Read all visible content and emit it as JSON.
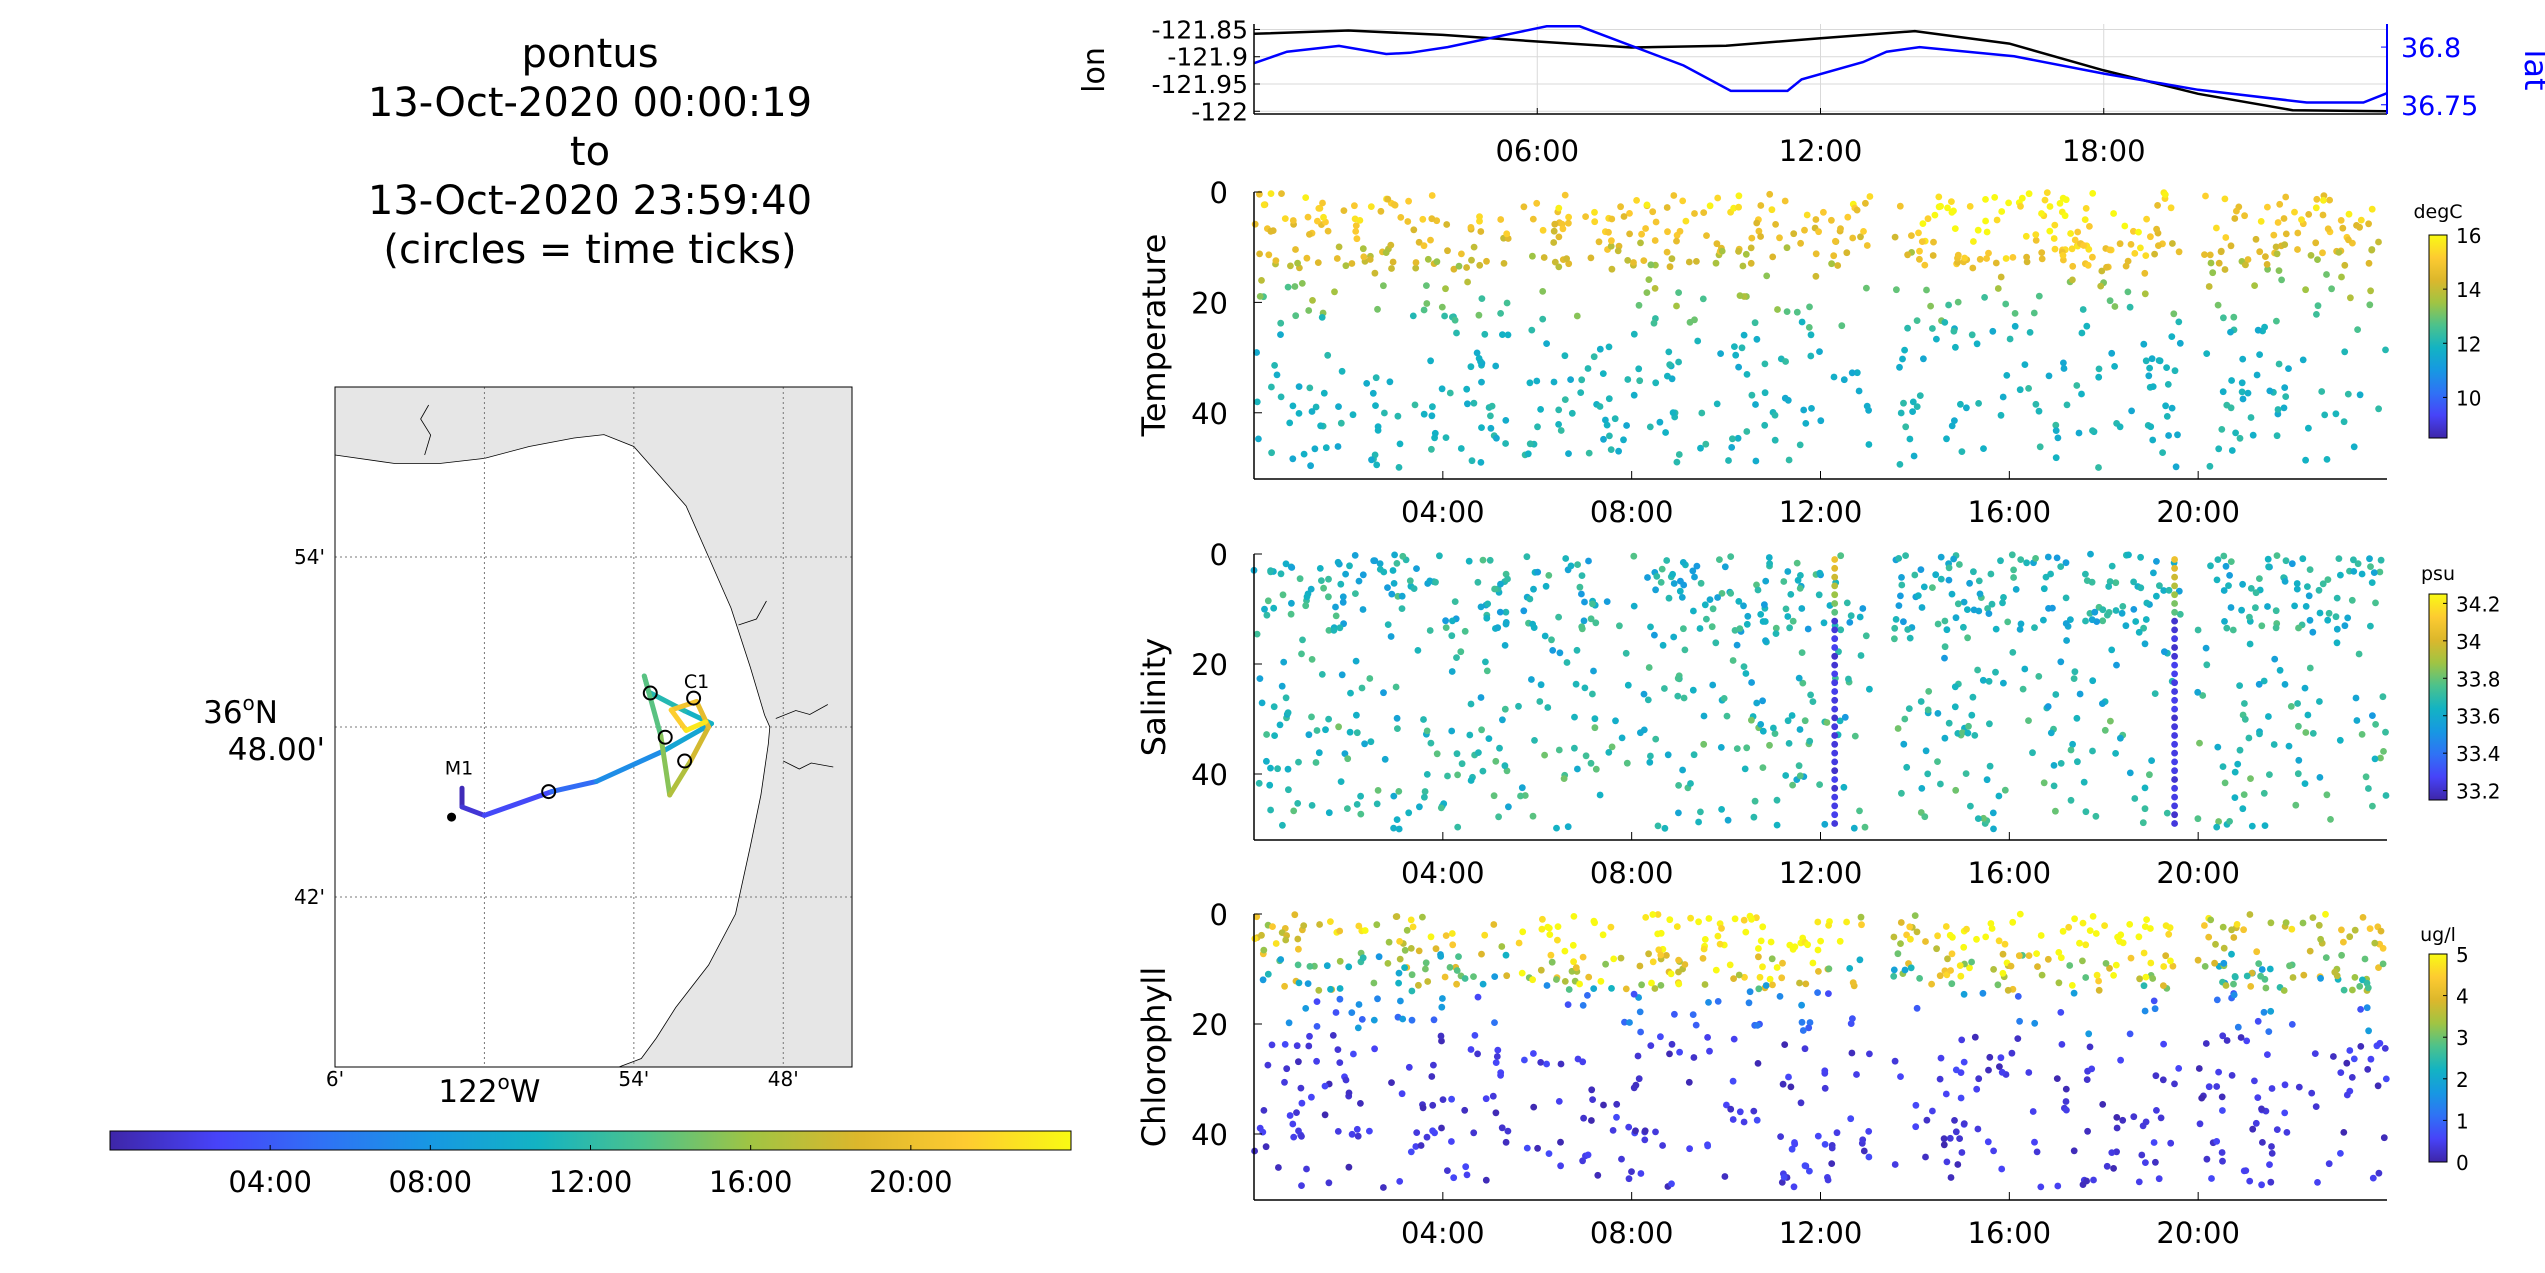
{
  "title": {
    "lines": [
      "pontus",
      "13-Oct-2020 00:00:19",
      "to",
      "13-Oct-2020 23:59:40",
      "(circles = time ticks)"
    ]
  },
  "colors": {
    "lon_line": "#000000",
    "lat_line": "#0000ff",
    "land": "#e6e6e6",
    "water": "#ffffff",
    "parula": [
      "#3e26a8",
      "#4743f8",
      "#2f72f5",
      "#1798e2",
      "#13b3c3",
      "#4cc28c",
      "#a0c443",
      "#dcb72c",
      "#fdcb31",
      "#f9fa13"
    ]
  },
  "chart_data": [
    {
      "id": "map",
      "type": "map",
      "x_ticks": [
        "6'",
        "122°W",
        "54'",
        "48'"
      ],
      "x_tick_lon": [
        -122.1,
        -122.0,
        -121.9,
        -121.8
      ],
      "y_ticks": [
        "54'",
        "36°N 48.00'",
        "42'"
      ],
      "y_tick_lat": [
        36.9,
        36.8,
        36.7
      ],
      "lon_range": [
        -122.1,
        -121.754
      ],
      "lat_range": [
        36.6,
        37.0
      ],
      "grid": true,
      "labels": [
        {
          "text": "M1",
          "lon": -122.017,
          "lat": 36.772
        },
        {
          "text": "C1",
          "lon": -121.858,
          "lat": 36.823
        }
      ],
      "mooring_point": {
        "lon": -122.022,
        "lat": 36.747
      },
      "track": [
        {
          "lon": -122.015,
          "lat": 36.764,
          "t": 0.0
        },
        {
          "lon": -122.015,
          "lat": 36.753,
          "t": 1.0
        },
        {
          "lon": -122.0,
          "lat": 36.748,
          "t": 2.0
        },
        {
          "lon": -121.955,
          "lat": 36.762,
          "t": 4.0
        },
        {
          "lon": -121.925,
          "lat": 36.768,
          "t": 6.0
        },
        {
          "lon": -121.88,
          "lat": 36.786,
          "t": 8.5
        },
        {
          "lon": -121.848,
          "lat": 36.802,
          "t": 10.0
        },
        {
          "lon": -121.866,
          "lat": 36.8095,
          "t": 11.0
        },
        {
          "lon": -121.89,
          "lat": 36.8205,
          "t": 12.0
        },
        {
          "lon": -121.893,
          "lat": 36.83,
          "t": 13.0
        },
        {
          "lon": -121.882,
          "lat": 36.795,
          "t": 14.5
        },
        {
          "lon": -121.876,
          "lat": 36.76,
          "t": 16.0
        },
        {
          "lon": -121.862,
          "lat": 36.78,
          "t": 17.5
        },
        {
          "lon": -121.85,
          "lat": 36.8,
          "t": 19.0
        },
        {
          "lon": -121.858,
          "lat": 36.815,
          "t": 20.0
        },
        {
          "lon": -121.875,
          "lat": 36.81,
          "t": 21.0
        },
        {
          "lon": -121.865,
          "lat": 36.798,
          "t": 22.0
        },
        {
          "lon": -121.852,
          "lat": 36.803,
          "t": 24.0
        }
      ],
      "time_tick_circles": [
        {
          "lon": -121.957,
          "lat": 36.762
        },
        {
          "lon": -121.866,
          "lat": 36.78
        },
        {
          "lon": -121.879,
          "lat": 36.794
        },
        {
          "lon": -121.889,
          "lat": 36.82
        },
        {
          "lon": -121.86,
          "lat": 36.817
        }
      ]
    },
    {
      "id": "time-colorbar",
      "type": "colorbar",
      "range_hours": [
        0,
        24
      ],
      "tick_labels": [
        "04:00",
        "08:00",
        "12:00",
        "16:00",
        "20:00"
      ],
      "tick_hours": [
        4,
        8,
        12,
        16,
        20
      ]
    },
    {
      "id": "lonlat",
      "type": "line",
      "x_range_hours": [
        0,
        24
      ],
      "x_tick_labels": [
        "06:00",
        "12:00",
        "18:00"
      ],
      "x_tick_hours": [
        6,
        12,
        18
      ],
      "grid": true,
      "series": [
        {
          "name": "lon",
          "axis": "left",
          "ylabel": "lon",
          "y_range": [
            -122.005,
            -121.84
          ],
          "y_tick_labels": [
            "-121.85",
            "-121.9",
            "-121.95",
            "-122"
          ],
          "y_ticks": [
            -121.85,
            -121.9,
            -121.95,
            -122.0
          ],
          "x": [
            0,
            2,
            4,
            6,
            8,
            10,
            12,
            14,
            16,
            18,
            20,
            22,
            24
          ],
          "y": [
            -121.858,
            -121.852,
            -121.86,
            -121.872,
            -121.883,
            -121.88,
            -121.866,
            -121.853,
            -121.876,
            -121.925,
            -121.968,
            -121.998,
            -122.0
          ]
        },
        {
          "name": "lat",
          "axis": "right",
          "ylabel": "lat",
          "y_range": [
            36.742,
            36.82
          ],
          "y_tick_labels": [
            "36.8",
            "36.75"
          ],
          "y_ticks": [
            36.8,
            36.75
          ],
          "x": [
            0,
            0.7,
            1.8,
            2.8,
            3.3,
            4.1,
            5.5,
            6.2,
            6.9,
            9.1,
            10.1,
            11.3,
            11.6,
            12.9,
            13.4,
            14.1,
            16.1,
            18.0,
            20.0,
            22.3,
            23.5,
            24
          ],
          "y": [
            36.786,
            36.796,
            36.801,
            36.794,
            36.795,
            36.8,
            36.812,
            36.818,
            36.818,
            36.784,
            36.762,
            36.762,
            36.772,
            36.787,
            36.796,
            36.8,
            36.792,
            36.777,
            36.763,
            36.752,
            36.752,
            36.76
          ]
        }
      ]
    },
    {
      "id": "temperature",
      "type": "scatter",
      "ylabel": "Temperature",
      "y_range": [
        0,
        52
      ],
      "y_ticks": [
        0,
        20,
        40
      ],
      "y_reversed": true,
      "x_range_hours": [
        0,
        24
      ],
      "x_tick_labels": [
        "04:00",
        "08:00",
        "12:00",
        "16:00",
        "20:00"
      ],
      "x_tick_hours": [
        4,
        8,
        12,
        16,
        20
      ],
      "data_gaps_hours": [
        [
          5.4,
          5.6
        ],
        [
          13.05,
          13.55
        ],
        [
          19.65,
          19.95
        ]
      ],
      "colorbar": {
        "label": "degC",
        "range": [
          8.5,
          16
        ],
        "tick_labels": [
          "16",
          "14",
          "12",
          "10"
        ],
        "ticks": [
          16,
          14,
          12,
          10
        ]
      },
      "profile": "temperature"
    },
    {
      "id": "salinity",
      "type": "scatter",
      "ylabel": "Salinity",
      "y_range": [
        0,
        52
      ],
      "y_ticks": [
        0,
        20,
        40
      ],
      "y_reversed": true,
      "x_range_hours": [
        0,
        24
      ],
      "x_tick_labels": [
        "04:00",
        "08:00",
        "12:00",
        "16:00",
        "20:00"
      ],
      "x_tick_hours": [
        4,
        8,
        12,
        16,
        20
      ],
      "data_gaps_hours": [
        [
          5.4,
          5.6
        ],
        [
          13.05,
          13.55
        ],
        [
          19.65,
          19.95
        ]
      ],
      "colorbar": {
        "label": "psu",
        "range": [
          33.15,
          34.25
        ],
        "tick_labels": [
          "34.2",
          "34",
          "33.8",
          "33.6",
          "33.4",
          "33.2"
        ],
        "ticks": [
          34.2,
          34.0,
          33.8,
          33.6,
          33.4,
          33.2
        ]
      },
      "profile": "salinity",
      "vertical_casts_hours": [
        12.3,
        19.5
      ]
    },
    {
      "id": "chlorophyll",
      "type": "scatter",
      "ylabel": "Chlorophyll",
      "y_range": [
        0,
        52
      ],
      "y_ticks": [
        0,
        20,
        40
      ],
      "y_reversed": true,
      "x_range_hours": [
        0,
        24
      ],
      "x_tick_labels": [
        "04:00",
        "08:00",
        "12:00",
        "16:00",
        "20:00"
      ],
      "x_tick_hours": [
        4,
        8,
        12,
        16,
        20
      ],
      "data_gaps_hours": [
        [
          5.4,
          5.6
        ],
        [
          13.05,
          13.55
        ],
        [
          19.65,
          19.95
        ]
      ],
      "colorbar": {
        "label": "ug/l",
        "range": [
          0,
          5
        ],
        "tick_labels": [
          "5",
          "4",
          "3",
          "2",
          "1",
          "0"
        ],
        "ticks": [
          5,
          4,
          3,
          2,
          1,
          0
        ]
      },
      "profile": "chlorophyll"
    }
  ]
}
